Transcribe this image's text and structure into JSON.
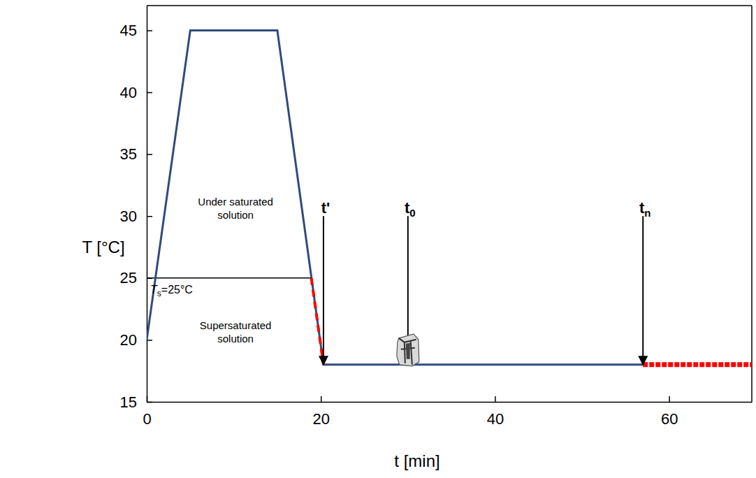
{
  "chart_data": {
    "type": "line",
    "xlabel": "t [min]",
    "ylabel": "T [°C]",
    "xlim": [
      0,
      69.5
    ],
    "ylim": [
      15,
      47
    ],
    "xticks": [
      0,
      20,
      40,
      60
    ],
    "yticks": [
      15,
      20,
      25,
      30,
      35,
      40,
      45
    ],
    "grid": false,
    "series": [
      {
        "color": "#2f4b7c",
        "line_style": "solid",
        "x": [
          0,
          5,
          15,
          20.3,
          57
        ],
        "values": [
          20,
          45,
          45,
          18,
          18
        ]
      },
      {
        "color": "#ff0000",
        "line_style": "dashed",
        "x": [
          18.9,
          20.3
        ],
        "values": [
          25,
          18
        ]
      },
      {
        "color": "#ff0000",
        "line_style": "dotted",
        "x": [
          57,
          69.5
        ],
        "values": [
          18,
          18
        ]
      }
    ],
    "reference_line": {
      "y": 25,
      "x": [
        0,
        18.9
      ],
      "label": "Ts=25°C"
    },
    "annotations": [
      {
        "text": "Under saturated solution",
        "x": 10.2,
        "y": 30.6
      },
      {
        "text": "Supersaturated solution",
        "x": 10.2,
        "y": 20.6
      }
    ],
    "time_markers": [
      {
        "label": "t'",
        "x": 20.3,
        "y": [
          30,
          18
        ]
      },
      {
        "label": "t0",
        "x": 30,
        "y": [
          30,
          18
        ]
      },
      {
        "label": "tn",
        "x": 57,
        "y": [
          30,
          18
        ]
      }
    ]
  }
}
